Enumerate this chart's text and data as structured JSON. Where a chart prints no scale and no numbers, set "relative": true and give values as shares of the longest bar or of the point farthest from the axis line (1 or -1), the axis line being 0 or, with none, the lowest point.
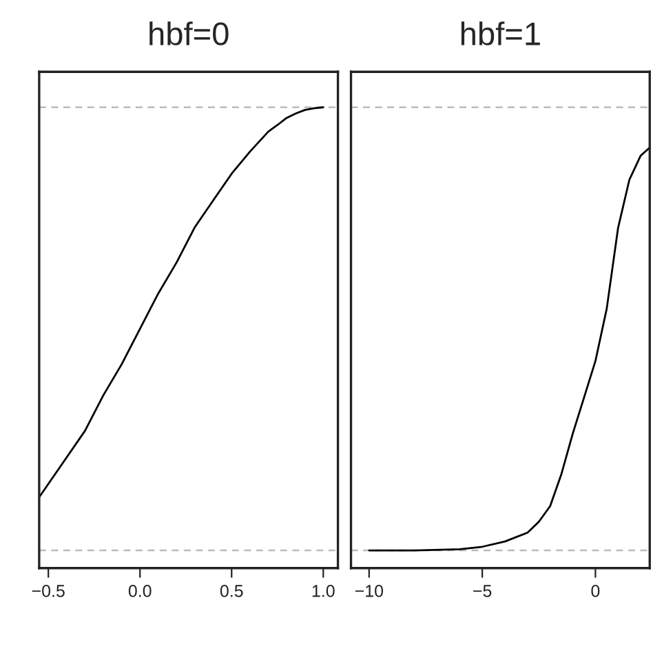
{
  "chart_data": [
    {
      "type": "line",
      "title": "hbf=0",
      "relative": true,
      "tick_labels": "x",
      "xlim": [
        -0.55,
        1.08
      ],
      "xticks": [
        {
          "value": -0.5,
          "label": "−0.5"
        },
        {
          "value": 0,
          "label": "0.0"
        },
        0.5,
        {
          "value": 1.0,
          "label": "1.0"
        }
      ],
      "series": [
        {
          "color": "#000000",
          "x": [
            -0.55,
            -0.5,
            -0.4,
            -0.3,
            -0.2,
            -0.1,
            0,
            0.1,
            0.2,
            0.3,
            0.4,
            0.5,
            0.6,
            0.7,
            0.75,
            0.8,
            0.85,
            0.9,
            0.95,
            1.0
          ],
          "values": [
            0.12,
            0.15,
            0.21,
            0.27,
            0.35,
            0.42,
            0.5,
            0.58,
            0.65,
            0.73,
            0.79,
            0.85,
            0.9,
            0.945,
            0.96,
            0.976,
            0.986,
            0.994,
            0.998,
            1.0
          ]
        }
      ],
      "ref_lines": [
        {
          "axis": "y",
          "value": 0,
          "color": "#bbbbbb",
          "line_style": "dashed"
        },
        {
          "axis": "y",
          "value": 1,
          "color": "#bbbbbb",
          "line_style": "dashed"
        }
      ]
    },
    {
      "type": "line",
      "title": "hbf=1",
      "relative": true,
      "tick_labels": "x",
      "xlim": [
        -10.8,
        2.4
      ],
      "xticks": [
        {
          "value": -10,
          "label": "−10"
        },
        {
          "value": -5,
          "label": "−5"
        },
        0
      ],
      "series": [
        {
          "color": "#000000",
          "x": [
            -10,
            -8,
            -6,
            -5,
            -4,
            -3,
            -2.5,
            -2,
            -1.5,
            -1,
            -0.5,
            0,
            0.5,
            1,
            1.5,
            2,
            2.4
          ],
          "values": [
            0.0,
            0.0,
            0.003,
            0.009,
            0.022,
            0.044,
            0.071,
            0.11,
            0.19,
            0.29,
            0.38,
            0.47,
            0.6,
            0.8,
            0.92,
            0.98,
            1.0
          ]
        }
      ],
      "ref_lines": [
        {
          "axis": "y",
          "value": 0,
          "color": "#bbbbbb",
          "line_style": "dashed"
        },
        {
          "axis": "y",
          "value": 1.1,
          "color": "#bbbbbb",
          "line_style": "dashed"
        }
      ]
    }
  ]
}
